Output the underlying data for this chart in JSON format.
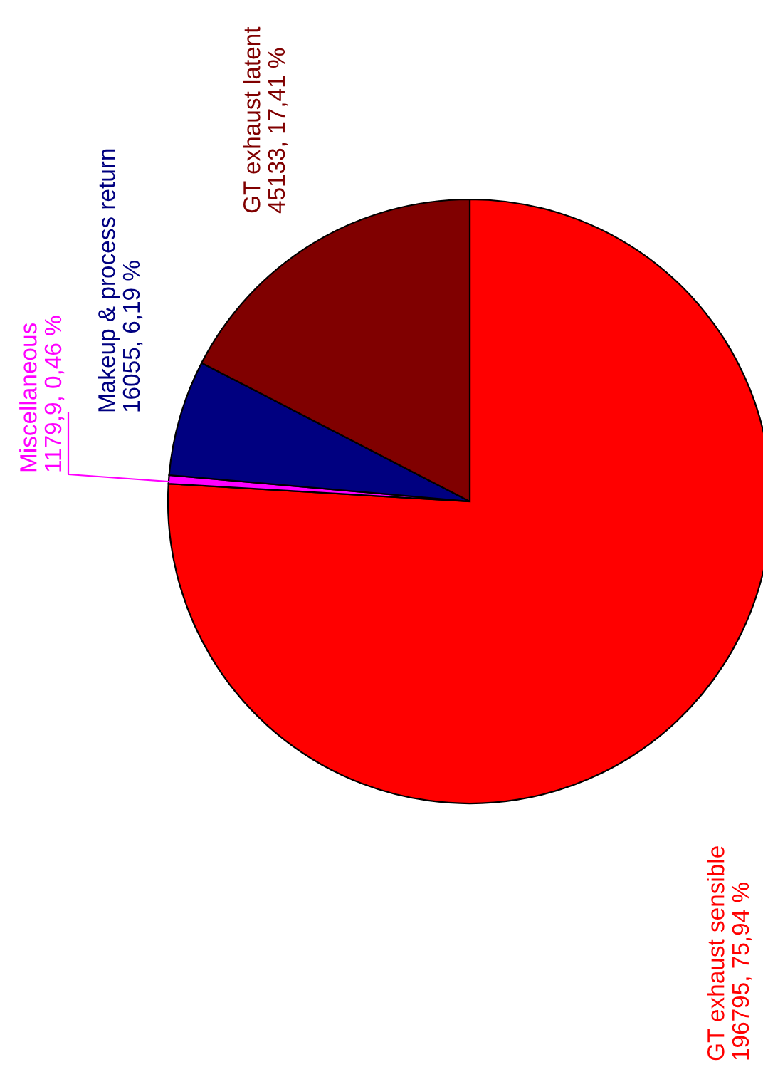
{
  "chart_data": {
    "type": "pie",
    "categories": [
      "GT exhaust sensible",
      "Miscellaneous",
      "Makeup & process return",
      "GT exhaust latent"
    ],
    "values": [
      196795,
      1179.9,
      16055,
      45133
    ],
    "colors": [
      "#ff0000",
      "#ff00ff",
      "#000080",
      "#800000"
    ],
    "value_labels": [
      "196795, 75,94 %",
      "1179,9, 0,46 %",
      "16055, 6,19 %",
      "45133, 17,41 %"
    ],
    "legend": false
  }
}
